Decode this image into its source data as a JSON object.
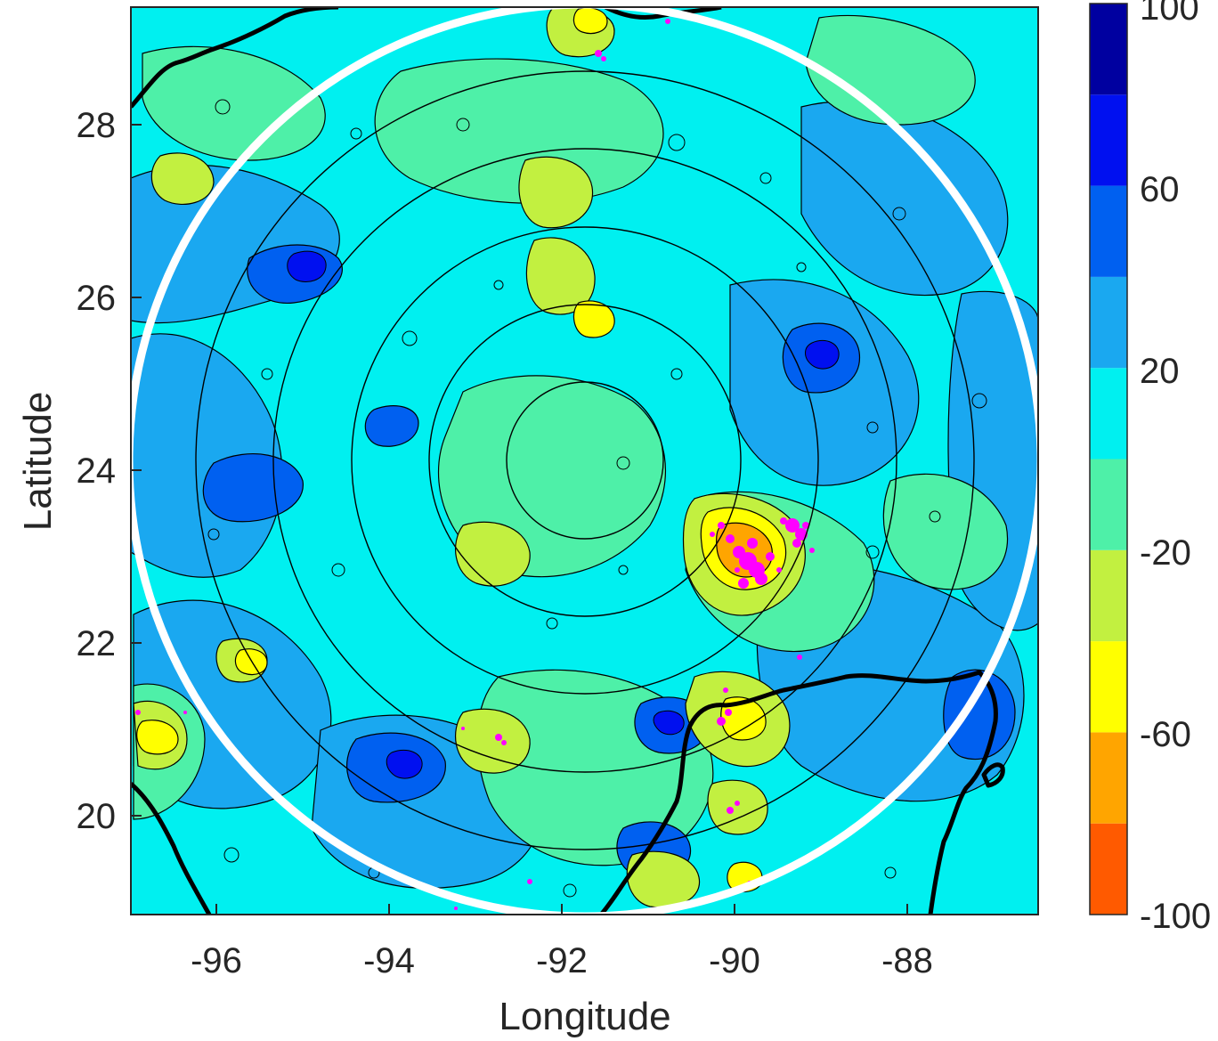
{
  "chart_data": {
    "type": "heatmap",
    "title": "",
    "xlabel": "Longitude",
    "ylabel": "Latitude",
    "x_ticks": [
      -96,
      -94,
      -92,
      -90,
      -88
    ],
    "y_ticks": [
      20,
      22,
      24,
      26,
      28
    ],
    "xlim": [
      -96.9,
      -86.4
    ],
    "ylim": [
      18.8,
      29.3
    ],
    "radar_center": {
      "lon": -92.1,
      "lat": 24.1
    },
    "range_rings_count": 6,
    "grid": false,
    "colorbar": {
      "placement": "right",
      "range": [
        -100,
        100
      ],
      "tick_labels": [
        "-100",
        "-60",
        "-20",
        "20",
        "60",
        "100"
      ],
      "levels": [
        {
          "min": -100,
          "max": -80,
          "color": "#ff5a00"
        },
        {
          "min": -80,
          "max": -60,
          "color": "#ffa500"
        },
        {
          "min": -60,
          "max": -40,
          "color": "#ffff00"
        },
        {
          "min": -40,
          "max": -20,
          "color": "#c2f040"
        },
        {
          "min": -20,
          "max": 0,
          "color": "#4ef0a8"
        },
        {
          "min": 0,
          "max": 20,
          "color": "#00f0f0"
        },
        {
          "min": 20,
          "max": 40,
          "color": "#1aa8f0"
        },
        {
          "min": 40,
          "max": 60,
          "color": "#0060f0"
        },
        {
          "min": 60,
          "max": 80,
          "color": "#0010f0"
        },
        {
          "min": 80,
          "max": 100,
          "color": "#0000a0"
        }
      ]
    },
    "dominant_level_color": "#00f0f0",
    "annotations": [
      "white circle marking radar coverage edge",
      "magenta dots marking lightning strikes near -89.7, 23.0",
      "black coastlines: Texas (NW), Mexico (SW), Yucatan (SE)"
    ]
  }
}
